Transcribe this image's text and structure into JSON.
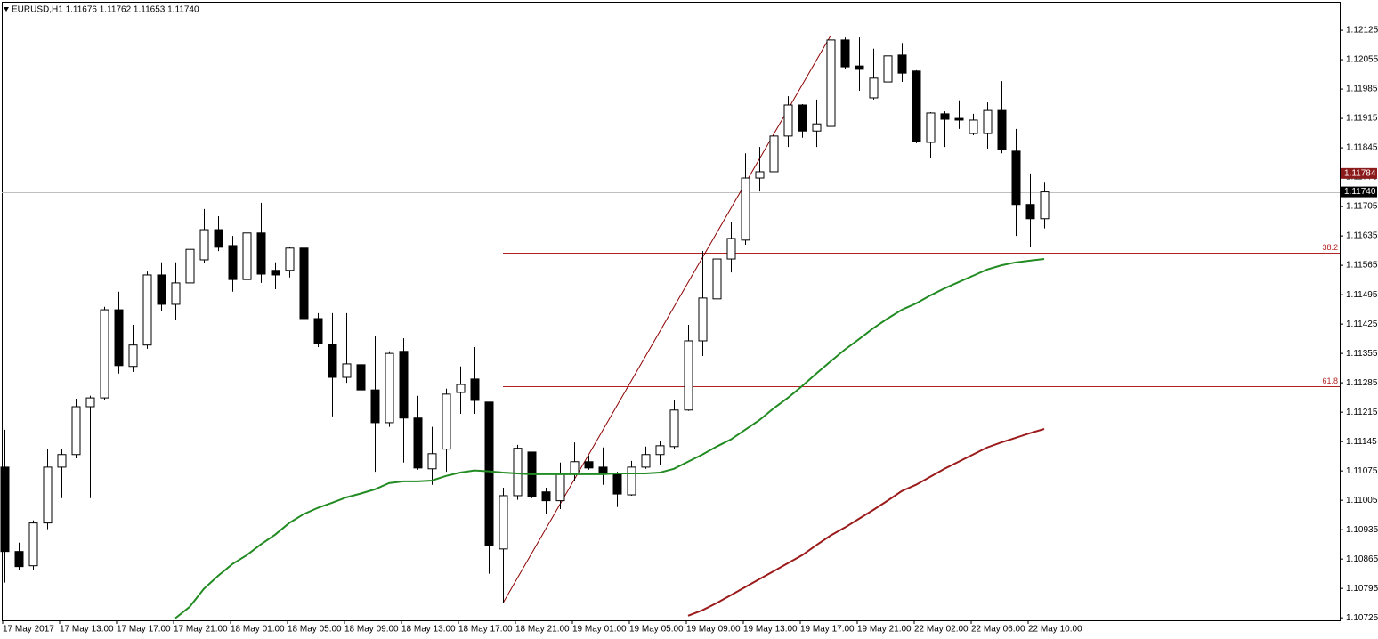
{
  "chart_data": {
    "type": "candlestick",
    "title": "EURUSD,H1  1.11676 1.11762 1.11653 1.11740",
    "categories": [
      "17 May 2017",
      null,
      null,
      null,
      "17 May 13:00",
      null,
      null,
      null,
      "17 May 17:00",
      null,
      null,
      null,
      "17 May 21:00",
      null,
      null,
      null,
      "18 May 01:00",
      null,
      null,
      null,
      "18 May 05:00",
      null,
      null,
      null,
      "18 May 09:00",
      null,
      null,
      null,
      "18 May 13:00",
      null,
      null,
      null,
      "18 May 17:00",
      null,
      null,
      null,
      "18 May 21:00",
      null,
      null,
      null,
      "19 May 01:00",
      null,
      null,
      null,
      "19 May 05:00",
      null,
      null,
      null,
      "19 May 09:00",
      null,
      null,
      null,
      "19 May 13:00",
      null,
      null,
      null,
      "19 May 17:00",
      null,
      null,
      null,
      "19 May 21:00",
      null,
      null,
      null,
      "22 May 02:00",
      null,
      null,
      null,
      "22 May 06:00",
      null,
      null,
      null,
      "22 May 10:00",
      null
    ],
    "open": [
      1.11084,
      1.10883,
      1.10849,
      1.10951,
      1.11084,
      1.11114,
      1.11228,
      1.11249,
      1.11459,
      1.11324,
      1.11375,
      1.11542,
      1.11472,
      1.11523,
      1.11578,
      1.1165,
      1.11612,
      1.11531,
      1.11642,
      1.11553,
      1.11553,
      1.11606,
      1.11438,
      1.11377,
      1.11298,
      1.11328,
      1.11268,
      1.1119,
      1.1136,
      1.11201,
      1.1108,
      1.11127,
      1.11262,
      1.11294,
      1.11239,
      1.10889,
      1.11016,
      1.1112,
      1.11025,
      1.11004,
      1.11069,
      1.11097,
      1.11084,
      1.11067,
      1.11018,
      1.11084,
      1.11114,
      1.11133,
      1.1122,
      1.11385,
      1.11485,
      1.1158,
      1.11625,
      1.11773,
      1.11788,
      1.11873,
      1.11947,
      1.11885,
      1.11896,
      1.12102,
      1.1204,
      1.11964,
      1.12002,
      1.12066,
      1.12028,
      1.11858,
      1.11926,
      1.11915,
      1.11879,
      1.11879,
      1.11934,
      1.11837,
      1.1171,
      1.11676
    ],
    "high": [
      1.11173,
      1.10904,
      1.10957,
      1.11127,
      1.11127,
      1.11247,
      1.11254,
      1.11466,
      1.11502,
      1.11423,
      1.1155,
      1.11572,
      1.11572,
      1.11625,
      1.11699,
      1.11682,
      1.11635,
      1.11656,
      1.11714,
      1.11572,
      1.11608,
      1.1162,
      1.11451,
      1.11451,
      1.11451,
      1.11444,
      1.11396,
      1.1136,
      1.11391,
      1.11254,
      1.1118,
      1.11271,
      1.11324,
      1.1137,
      1.11239,
      1.11035,
      1.11137,
      1.1112,
      1.11035,
      1.11095,
      1.11143,
      1.11112,
      1.11131,
      1.11073,
      1.11099,
      1.11133,
      1.11146,
      1.11243,
      1.11423,
      1.11599,
      1.1165,
      1.11667,
      1.11832,
      1.11847,
      1.1196,
      1.11968,
      1.11949,
      1.1196,
      1.12112,
      1.12108,
      1.12108,
      1.12081,
      1.12076,
      1.12095,
      1.1203,
      1.1193,
      1.11932,
      1.11958,
      1.11926,
      1.11953,
      1.12004,
      1.1189,
      1.11784,
      1.11762
    ],
    "low": [
      1.10809,
      1.1084,
      1.1084,
      1.10936,
      1.1101,
      1.11105,
      1.1101,
      1.11243,
      1.11307,
      1.11311,
      1.11366,
      1.11455,
      1.11434,
      1.11508,
      1.1157,
      1.11599,
      1.11502,
      1.11502,
      1.11523,
      1.11508,
      1.11536,
      1.1143,
      1.1137,
      1.11205,
      1.11285,
      1.1126,
      1.11073,
      1.1118,
      1.11095,
      1.11078,
      1.11042,
      1.11073,
      1.11211,
      1.11211,
      1.1083,
      1.1076,
      1.11006,
      1.1101,
      1.10972,
      1.10984,
      1.11052,
      1.11078,
      1.11042,
      1.10989,
      1.11016,
      1.1108,
      1.1109,
      1.11127,
      1.11218,
      1.11349,
      1.11459,
      1.11548,
      1.11614,
      1.11741,
      1.11779,
      1.11847,
      1.11869,
      1.11847,
      1.1189,
      1.12032,
      1.11981,
      1.1196,
      1.11996,
      1.12002,
      1.11856,
      1.1182,
      1.11847,
      1.1189,
      1.11875,
      1.11843,
      1.11832,
      1.11635,
      1.11608,
      1.11653
    ],
    "close": [
      1.10883,
      1.10847,
      1.10951,
      1.11084,
      1.11114,
      1.11228,
      1.11249,
      1.11459,
      1.11326,
      1.11375,
      1.11542,
      1.11472,
      1.11523,
      1.11603,
      1.1165,
      1.11608,
      1.11531,
      1.11642,
      1.11544,
      1.11542,
      1.11606,
      1.11438,
      1.11379,
      1.11298,
      1.1133,
      1.11268,
      1.1119,
      1.11355,
      1.11201,
      1.11082,
      1.11116,
      1.11258,
      1.11281,
      1.11243,
      1.10898,
      1.11016,
      1.11129,
      1.11014,
      1.11004,
      1.11069,
      1.11097,
      1.11082,
      1.11069,
      1.1102,
      1.11084,
      1.11114,
      1.11135,
      1.1122,
      1.11385,
      1.11487,
      1.1158,
      1.11629,
      1.11773,
      1.11788,
      1.11873,
      1.11947,
      1.11885,
      1.11902,
      1.12102,
      1.12038,
      1.12032,
      1.12011,
      1.12064,
      1.12023,
      1.1186,
      1.11928,
      1.11913,
      1.11911,
      1.11911,
      1.11934,
      1.11841,
      1.1171,
      1.11676,
      1.1174
    ],
    "up_color": "#ffffff",
    "down_color": "#000000",
    "wick_color": "#000000",
    "lines": [
      {
        "color": "#228b22",
        "values": [
          null,
          null,
          null,
          null,
          null,
          null,
          null,
          null,
          null,
          null,
          null,
          null,
          1.10724,
          1.10751,
          1.10794,
          1.10825,
          1.10853,
          1.10874,
          1.109,
          1.10923,
          1.10951,
          1.10972,
          1.10987,
          1.10999,
          1.11012,
          1.11021,
          1.11031,
          1.11046,
          1.1105,
          1.1105,
          1.11052,
          1.11063,
          1.11071,
          1.11076,
          1.11074,
          1.11071,
          1.11069,
          1.11067,
          1.11067,
          1.11067,
          1.11067,
          1.11067,
          1.11067,
          1.11069,
          1.11069,
          1.11069,
          1.11071,
          1.1108,
          1.11097,
          1.11114,
          1.11133,
          1.1115,
          1.11173,
          1.11196,
          1.11224,
          1.11249,
          1.11277,
          1.11307,
          1.11336,
          1.11364,
          1.11389,
          1.11415,
          1.11438,
          1.11459,
          1.11474,
          1.11493,
          1.1151,
          1.11525,
          1.1154,
          1.11555,
          1.11565,
          1.11572,
          1.11576,
          1.1158
        ]
      },
      {
        "color": "#9b1b1b",
        "values": [
          null,
          null,
          null,
          null,
          null,
          null,
          null,
          null,
          null,
          null,
          null,
          null,
          null,
          null,
          null,
          null,
          null,
          null,
          null,
          null,
          null,
          null,
          null,
          null,
          null,
          null,
          null,
          null,
          null,
          null,
          null,
          null,
          null,
          null,
          null,
          null,
          null,
          null,
          null,
          null,
          null,
          null,
          null,
          null,
          null,
          null,
          null,
          null,
          1.1073,
          1.10743,
          1.1076,
          1.10779,
          1.10798,
          1.10817,
          1.10836,
          1.10855,
          1.10874,
          1.10898,
          1.10921,
          1.1094,
          1.10961,
          1.10982,
          1.11004,
          1.11027,
          1.11042,
          1.11061,
          1.1108,
          1.11097,
          1.11114,
          1.11131,
          1.11143,
          1.11154,
          1.11165,
          1.11175
        ]
      }
    ],
    "fibonacci": {
      "levels": [
        38.2,
        61.8
      ],
      "color": "#b22222",
      "trend_color": "#8b0000"
    },
    "price_lines": [
      {
        "value": 1.11784,
        "label": "1.11784",
        "color": "#8b1a1a",
        "line_color": "#8b1a1a",
        "style": "dashed"
      },
      {
        "value": 1.1174,
        "label": "1.11740",
        "color": "#000000",
        "line_color": "#c0c0c0",
        "style": "solid"
      }
    ],
    "ylim": [
      1.10719,
      1.12193
    ],
    "yticks": [
      1.12125,
      1.12055,
      1.11985,
      1.11915,
      1.11845,
      1.11775,
      1.11705,
      1.11635,
      1.11565,
      1.11495,
      1.11425,
      1.11355,
      1.11285,
      1.11215,
      1.11145,
      1.11075,
      1.11005,
      1.10935,
      1.10865,
      1.10795,
      1.10725
    ]
  }
}
